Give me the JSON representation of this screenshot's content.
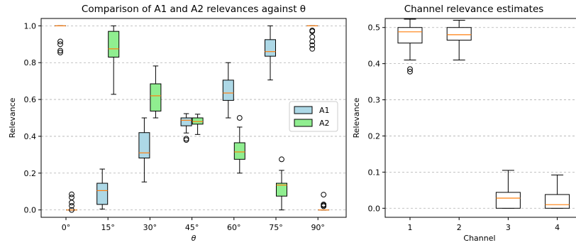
{
  "chart_data": [
    {
      "type": "boxplot",
      "title": "Comparison of A1 and A2 relevances against θ",
      "xlabel": "θ",
      "ylabel": "Relevance",
      "categories": [
        "0°",
        "15°",
        "30°",
        "45°",
        "60°",
        "75°",
        "90°"
      ],
      "ylim": [
        -0.04,
        1.04
      ],
      "yticks": [
        0.0,
        0.2,
        0.4,
        0.6,
        0.8,
        1.0
      ],
      "ytick_labels": [
        "0.0",
        "0.2",
        "0.4",
        "0.6",
        "0.8",
        "1.0"
      ],
      "grid": "horizontal dashed",
      "legend_position": "right",
      "series": [
        {
          "name": "A1",
          "color": "#add8e6",
          "boxes": [
            {
              "whislo": 1.0,
              "q1": 1.0,
              "med": 1.0,
              "q3": 1.0,
              "whishi": 1.0,
              "fliers": [
                0.915,
                0.9,
                0.865,
                0.855
              ]
            },
            {
              "whislo": 0.005,
              "q1": 0.03,
              "med": 0.105,
              "q3": 0.145,
              "whishi": 0.222,
              "fliers": []
            },
            {
              "whislo": 0.152,
              "q1": 0.282,
              "med": 0.31,
              "q3": 0.42,
              "whishi": 0.5,
              "fliers": []
            },
            {
              "whislo": 0.418,
              "q1": 0.457,
              "med": 0.487,
              "q3": 0.5,
              "whishi": 0.523,
              "fliers": [
                0.387,
                0.38
              ]
            },
            {
              "whislo": 0.5,
              "q1": 0.595,
              "med": 0.635,
              "q3": 0.705,
              "whishi": 0.8,
              "fliers": []
            },
            {
              "whislo": 0.706,
              "q1": 0.835,
              "med": 0.86,
              "q3": 0.925,
              "whishi": 1.0,
              "fliers": []
            },
            {
              "whislo": 1.0,
              "q1": 1.0,
              "med": 1.0,
              "q3": 1.0,
              "whishi": 1.0,
              "fliers": [
                0.975,
                0.97,
                0.94,
                0.915,
                0.895,
                0.875
              ]
            }
          ]
        },
        {
          "name": "A2",
          "color": "#90ee90",
          "boxes": [
            {
              "whislo": 0.0,
              "q1": 0.0,
              "med": 0.0,
              "q3": 0.0,
              "whishi": 0.0,
              "fliers": [
                0.085,
                0.068,
                0.04,
                0.022,
                0.0
              ]
            },
            {
              "whislo": 0.628,
              "q1": 0.83,
              "med": 0.875,
              "q3": 0.97,
              "whishi": 1.0,
              "fliers": []
            },
            {
              "whislo": 0.5,
              "q1": 0.537,
              "med": 0.62,
              "q3": 0.685,
              "whishi": 0.782,
              "fliers": []
            },
            {
              "whislo": 0.41,
              "q1": 0.466,
              "med": 0.48,
              "q3": 0.5,
              "whishi": 0.52,
              "fliers": []
            },
            {
              "whislo": 0.2,
              "q1": 0.275,
              "med": 0.315,
              "q3": 0.365,
              "whishi": 0.45,
              "fliers": [
                0.5
              ]
            },
            {
              "whislo": 0.0,
              "q1": 0.075,
              "med": 0.135,
              "q3": 0.145,
              "whishi": 0.215,
              "fliers": [
                0.275
              ]
            },
            {
              "whislo": 0.0,
              "q1": 0.0,
              "med": 0.0,
              "q3": 0.0,
              "whishi": 0.0,
              "fliers": [
                0.083,
                0.03,
                0.025,
                0.02
              ]
            }
          ]
        }
      ]
    },
    {
      "type": "boxplot",
      "title": "Channel relevance estimates",
      "xlabel": "Channel",
      "ylabel": "Relevance",
      "categories": [
        "1",
        "2",
        "3",
        "4"
      ],
      "ylim": [
        -0.025,
        0.525
      ],
      "yticks": [
        0.0,
        0.1,
        0.2,
        0.3,
        0.4,
        0.5
      ],
      "ytick_labels": [
        "0.0",
        "0.1",
        "0.2",
        "0.3",
        "0.4",
        "0.5"
      ],
      "grid": "horizontal dashed",
      "boxes": [
        {
          "whislo": 0.41,
          "q1": 0.457,
          "med": 0.488,
          "q3": 0.5,
          "whishi": 0.523,
          "fliers": [
            0.385,
            0.378
          ]
        },
        {
          "whislo": 0.41,
          "q1": 0.465,
          "med": 0.48,
          "q3": 0.5,
          "whishi": 0.52,
          "fliers": []
        },
        {
          "whislo": 0.0,
          "q1": 0.0,
          "med": 0.028,
          "q3": 0.044,
          "whishi": 0.105,
          "fliers": []
        },
        {
          "whislo": 0.0,
          "q1": 0.0,
          "med": 0.01,
          "q3": 0.038,
          "whishi": 0.092,
          "fliers": []
        }
      ]
    }
  ],
  "colors": {
    "median": "#ff7f0e",
    "grid": "#b0b0b0",
    "box_edge": "#000000",
    "plain_box_fill": "#ffffff"
  }
}
